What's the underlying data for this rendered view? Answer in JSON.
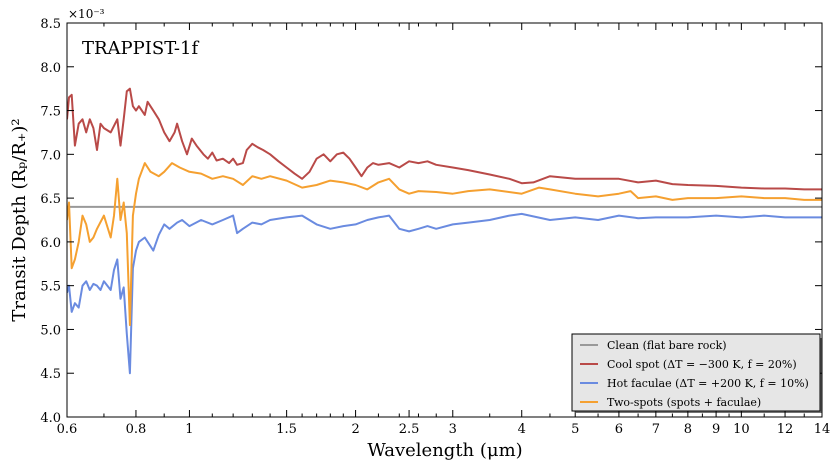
{
  "chart_data": {
    "type": "line",
    "title": "",
    "annotation": "TRAPPIST-1f",
    "xlabel": "Wavelength (μm)",
    "ylabel": "Transit Depth (Rₚ/R₊)²",
    "y_exponent_label": "×10⁻³",
    "xscale": "log",
    "xlim": [
      0.6,
      14
    ],
    "ylim": [
      4.0,
      8.5
    ],
    "grid": false,
    "legend_position": "bottom-right",
    "x_ticks": [
      0.6,
      0.8,
      1,
      1.5,
      2,
      2.5,
      3,
      4,
      5,
      6,
      7,
      8,
      9,
      10,
      12,
      14
    ],
    "x_tick_labels": [
      "0.6",
      "0.8",
      "1",
      "1.5",
      "2",
      "2.5",
      "3",
      "4",
      "5",
      "6",
      "7",
      "8",
      "9",
      "10",
      "12",
      "14"
    ],
    "y_ticks": [
      4.0,
      4.5,
      5.0,
      5.5,
      6.0,
      6.5,
      7.0,
      7.5,
      8.0,
      8.5
    ],
    "y_tick_labels": [
      "4.0",
      "4.5",
      "5.0",
      "5.5",
      "6.0",
      "6.5",
      "7.0",
      "7.5",
      "8.0",
      "8.5"
    ],
    "series": [
      {
        "name": "Clean (flat bare rock)",
        "color": "#999999",
        "points": [
          [
            0.6,
            6.4
          ],
          [
            14,
            6.4
          ]
        ]
      },
      {
        "name": "Cool spot (ΔT = −300 K, f = 20%)",
        "color": "#b94a48",
        "points": [
          [
            0.6,
            7.4
          ],
          [
            0.605,
            7.65
          ],
          [
            0.612,
            7.68
          ],
          [
            0.62,
            7.1
          ],
          [
            0.63,
            7.35
          ],
          [
            0.64,
            7.4
          ],
          [
            0.65,
            7.25
          ],
          [
            0.66,
            7.4
          ],
          [
            0.67,
            7.3
          ],
          [
            0.68,
            7.05
          ],
          [
            0.69,
            7.35
          ],
          [
            0.7,
            7.3
          ],
          [
            0.72,
            7.25
          ],
          [
            0.74,
            7.4
          ],
          [
            0.75,
            7.1
          ],
          [
            0.76,
            7.4
          ],
          [
            0.77,
            7.72
          ],
          [
            0.78,
            7.75
          ],
          [
            0.79,
            7.55
          ],
          [
            0.8,
            7.5
          ],
          [
            0.81,
            7.55
          ],
          [
            0.83,
            7.45
          ],
          [
            0.84,
            7.6
          ],
          [
            0.86,
            7.5
          ],
          [
            0.88,
            7.4
          ],
          [
            0.9,
            7.25
          ],
          [
            0.92,
            7.15
          ],
          [
            0.94,
            7.25
          ],
          [
            0.95,
            7.35
          ],
          [
            0.97,
            7.15
          ],
          [
            0.99,
            7.0
          ],
          [
            1.01,
            7.18
          ],
          [
            1.03,
            7.1
          ],
          [
            1.06,
            7.0
          ],
          [
            1.08,
            6.95
          ],
          [
            1.1,
            7.02
          ],
          [
            1.12,
            6.93
          ],
          [
            1.15,
            6.95
          ],
          [
            1.18,
            6.9
          ],
          [
            1.2,
            6.95
          ],
          [
            1.22,
            6.88
          ],
          [
            1.25,
            6.9
          ],
          [
            1.27,
            7.05
          ],
          [
            1.3,
            7.12
          ],
          [
            1.33,
            7.08
          ],
          [
            1.36,
            7.05
          ],
          [
            1.4,
            7.0
          ],
          [
            1.45,
            6.92
          ],
          [
            1.5,
            6.85
          ],
          [
            1.55,
            6.78
          ],
          [
            1.6,
            6.72
          ],
          [
            1.65,
            6.8
          ],
          [
            1.7,
            6.95
          ],
          [
            1.75,
            7.0
          ],
          [
            1.8,
            6.92
          ],
          [
            1.85,
            7.0
          ],
          [
            1.9,
            7.02
          ],
          [
            1.95,
            6.95
          ],
          [
            2.0,
            6.85
          ],
          [
            2.05,
            6.75
          ],
          [
            2.1,
            6.85
          ],
          [
            2.15,
            6.9
          ],
          [
            2.2,
            6.88
          ],
          [
            2.3,
            6.9
          ],
          [
            2.4,
            6.85
          ],
          [
            2.5,
            6.92
          ],
          [
            2.6,
            6.9
          ],
          [
            2.7,
            6.92
          ],
          [
            2.8,
            6.88
          ],
          [
            3.0,
            6.85
          ],
          [
            3.2,
            6.82
          ],
          [
            3.5,
            6.77
          ],
          [
            3.8,
            6.72
          ],
          [
            4.0,
            6.67
          ],
          [
            4.2,
            6.68
          ],
          [
            4.5,
            6.75
          ],
          [
            5.0,
            6.72
          ],
          [
            5.5,
            6.72
          ],
          [
            6.0,
            6.72
          ],
          [
            6.5,
            6.68
          ],
          [
            7.0,
            6.7
          ],
          [
            7.5,
            6.66
          ],
          [
            8.0,
            6.65
          ],
          [
            9.0,
            6.64
          ],
          [
            10.0,
            6.62
          ],
          [
            11.0,
            6.61
          ],
          [
            12.0,
            6.61
          ],
          [
            13.0,
            6.6
          ],
          [
            14.0,
            6.6
          ]
        ]
      },
      {
        "name": "Hot faculae (ΔT = +200 K, f = 10%)",
        "color": "#6a8be0",
        "points": [
          [
            0.6,
            5.42
          ],
          [
            0.605,
            5.5
          ],
          [
            0.612,
            5.2
          ],
          [
            0.62,
            5.3
          ],
          [
            0.63,
            5.25
          ],
          [
            0.64,
            5.5
          ],
          [
            0.65,
            5.55
          ],
          [
            0.66,
            5.45
          ],
          [
            0.67,
            5.52
          ],
          [
            0.68,
            5.5
          ],
          [
            0.69,
            5.45
          ],
          [
            0.7,
            5.55
          ],
          [
            0.72,
            5.45
          ],
          [
            0.73,
            5.68
          ],
          [
            0.74,
            5.8
          ],
          [
            0.75,
            5.35
          ],
          [
            0.76,
            5.48
          ],
          [
            0.77,
            4.95
          ],
          [
            0.78,
            4.5
          ],
          [
            0.79,
            5.7
          ],
          [
            0.8,
            5.9
          ],
          [
            0.81,
            6.0
          ],
          [
            0.83,
            6.05
          ],
          [
            0.86,
            5.9
          ],
          [
            0.88,
            6.08
          ],
          [
            0.9,
            6.2
          ],
          [
            0.92,
            6.15
          ],
          [
            0.95,
            6.22
          ],
          [
            0.97,
            6.25
          ],
          [
            1.0,
            6.18
          ],
          [
            1.05,
            6.25
          ],
          [
            1.1,
            6.2
          ],
          [
            1.15,
            6.25
          ],
          [
            1.2,
            6.3
          ],
          [
            1.22,
            6.1
          ],
          [
            1.25,
            6.15
          ],
          [
            1.3,
            6.22
          ],
          [
            1.35,
            6.2
          ],
          [
            1.4,
            6.25
          ],
          [
            1.5,
            6.28
          ],
          [
            1.6,
            6.3
          ],
          [
            1.7,
            6.2
          ],
          [
            1.8,
            6.15
          ],
          [
            1.9,
            6.18
          ],
          [
            2.0,
            6.2
          ],
          [
            2.1,
            6.25
          ],
          [
            2.2,
            6.28
          ],
          [
            2.3,
            6.3
          ],
          [
            2.4,
            6.15
          ],
          [
            2.5,
            6.12
          ],
          [
            2.6,
            6.15
          ],
          [
            2.7,
            6.18
          ],
          [
            2.8,
            6.15
          ],
          [
            3.0,
            6.2
          ],
          [
            3.2,
            6.22
          ],
          [
            3.5,
            6.25
          ],
          [
            3.8,
            6.3
          ],
          [
            4.0,
            6.32
          ],
          [
            4.5,
            6.25
          ],
          [
            5.0,
            6.28
          ],
          [
            5.5,
            6.25
          ],
          [
            6.0,
            6.3
          ],
          [
            6.5,
            6.27
          ],
          [
            7.0,
            6.28
          ],
          [
            8.0,
            6.28
          ],
          [
            9.0,
            6.3
          ],
          [
            10.0,
            6.28
          ],
          [
            11.0,
            6.3
          ],
          [
            12.0,
            6.28
          ],
          [
            13.0,
            6.28
          ],
          [
            14.0,
            6.28
          ]
        ]
      },
      {
        "name": "Two-spots (spots + faculae)",
        "color": "#f5a030",
        "points": [
          [
            0.6,
            6.25
          ],
          [
            0.605,
            6.45
          ],
          [
            0.612,
            5.7
          ],
          [
            0.62,
            5.8
          ],
          [
            0.63,
            6.0
          ],
          [
            0.64,
            6.3
          ],
          [
            0.65,
            6.2
          ],
          [
            0.66,
            6.0
          ],
          [
            0.67,
            6.05
          ],
          [
            0.68,
            6.15
          ],
          [
            0.7,
            6.3
          ],
          [
            0.72,
            6.05
          ],
          [
            0.73,
            6.3
          ],
          [
            0.74,
            6.72
          ],
          [
            0.75,
            6.25
          ],
          [
            0.76,
            6.45
          ],
          [
            0.77,
            6.1
          ],
          [
            0.78,
            5.05
          ],
          [
            0.79,
            6.3
          ],
          [
            0.8,
            6.55
          ],
          [
            0.81,
            6.72
          ],
          [
            0.83,
            6.9
          ],
          [
            0.85,
            6.8
          ],
          [
            0.88,
            6.75
          ],
          [
            0.9,
            6.8
          ],
          [
            0.93,
            6.9
          ],
          [
            0.96,
            6.85
          ],
          [
            1.0,
            6.8
          ],
          [
            1.05,
            6.78
          ],
          [
            1.1,
            6.72
          ],
          [
            1.15,
            6.75
          ],
          [
            1.2,
            6.72
          ],
          [
            1.25,
            6.65
          ],
          [
            1.3,
            6.75
          ],
          [
            1.35,
            6.72
          ],
          [
            1.4,
            6.75
          ],
          [
            1.5,
            6.7
          ],
          [
            1.6,
            6.62
          ],
          [
            1.7,
            6.65
          ],
          [
            1.8,
            6.7
          ],
          [
            1.9,
            6.68
          ],
          [
            2.0,
            6.65
          ],
          [
            2.1,
            6.6
          ],
          [
            2.2,
            6.68
          ],
          [
            2.3,
            6.72
          ],
          [
            2.4,
            6.6
          ],
          [
            2.5,
            6.55
          ],
          [
            2.6,
            6.58
          ],
          [
            2.8,
            6.57
          ],
          [
            3.0,
            6.55
          ],
          [
            3.2,
            6.58
          ],
          [
            3.5,
            6.6
          ],
          [
            4.0,
            6.55
          ],
          [
            4.3,
            6.62
          ],
          [
            4.5,
            6.6
          ],
          [
            5.0,
            6.55
          ],
          [
            5.5,
            6.52
          ],
          [
            6.0,
            6.55
          ],
          [
            6.3,
            6.58
          ],
          [
            6.5,
            6.5
          ],
          [
            7.0,
            6.52
          ],
          [
            7.5,
            6.48
          ],
          [
            8.0,
            6.5
          ],
          [
            9.0,
            6.5
          ],
          [
            10.0,
            6.52
          ],
          [
            11.0,
            6.5
          ],
          [
            12.0,
            6.5
          ],
          [
            13.0,
            6.48
          ],
          [
            14.0,
            6.48
          ]
        ]
      }
    ]
  }
}
